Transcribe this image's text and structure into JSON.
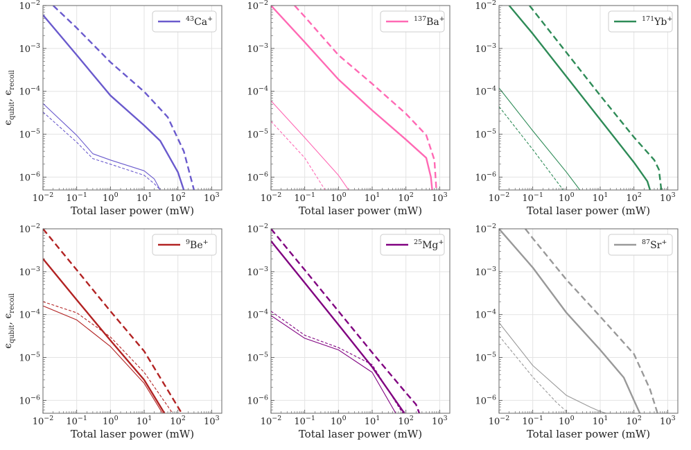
{
  "figure": {
    "ylabel": "ϵqubit, ϵrecoil",
    "xlabel": "Total laser power (mW)"
  },
  "chart_data": [
    {
      "type": "line",
      "xscale": "log",
      "yscale": "log",
      "xlim": [
        0.01,
        2000
      ],
      "ylim": [
        5e-07,
        0.01
      ],
      "x_tick_labels": [
        "10^-2",
        "10^-1",
        "10^0",
        "10^1",
        "10^2",
        "10^3"
      ],
      "y_tick_labels": [
        "10^-6",
        "10^-5",
        "10^-4",
        "10^-3",
        "10^-2"
      ],
      "xlabel": "Total laser power (mW)",
      "ylabel": "ϵqubit, ϵrecoil",
      "legend": {
        "label": "43Ca+",
        "mass": "43",
        "element": "Ca",
        "charge": "+"
      },
      "color": "#6a5acd",
      "series": [
        {
          "name": "qubit error (solid, thick)",
          "x": [
            0.01,
            0.1,
            1,
            10,
            30,
            100,
            150
          ],
          "y": [
            0.006,
            0.0007,
            8e-05,
            1.6e-05,
            7e-06,
            1.3e-06,
            5e-07
          ]
        },
        {
          "name": "qubit error (dashed, thick)",
          "x": [
            0.02,
            0.1,
            1,
            10,
            50,
            150,
            300
          ],
          "y": [
            0.01,
            0.003,
            0.00048,
            9.8e-05,
            2.5e-05,
            4e-06,
            5e-07
          ]
        },
        {
          "name": "recoil error (solid, thin)",
          "x": [
            0.01,
            0.1,
            0.3,
            1,
            10,
            20,
            30
          ],
          "y": [
            5.2e-05,
            9.4e-06,
            3.5e-06,
            2.5e-06,
            1.4e-06,
            9e-07,
            5e-07
          ]
        },
        {
          "name": "recoil error (dashed, thin)",
          "x": [
            0.01,
            0.1,
            0.3,
            1,
            10,
            20,
            30
          ],
          "y": [
            3.3e-05,
            6.5e-06,
            2.7e-06,
            2e-06,
            1.1e-06,
            7e-07,
            5e-07
          ]
        }
      ]
    },
    {
      "type": "line",
      "xscale": "log",
      "yscale": "log",
      "xlim": [
        0.01,
        2000
      ],
      "ylim": [
        5e-07,
        0.01
      ],
      "x_tick_labels": [
        "10^-2",
        "10^-1",
        "10^0",
        "10^1",
        "10^2",
        "10^3"
      ],
      "y_tick_labels": [
        "10^-6",
        "10^-5",
        "10^-4",
        "10^-3",
        "10^-2"
      ],
      "xlabel": "Total laser power (mW)",
      "ylabel": "",
      "legend": {
        "label": "137Ba+",
        "mass": "137",
        "element": "Ba",
        "charge": "+"
      },
      "color": "#ff69b4",
      "series": [
        {
          "name": "qubit error (solid, thick)",
          "x": [
            0.01,
            0.1,
            1,
            10,
            100,
            400,
            550,
            600
          ],
          "y": [
            0.01,
            0.0014,
            0.00019,
            3.6e-05,
            7.5e-06,
            2.8e-06,
            1e-06,
            5e-07
          ]
        },
        {
          "name": "qubit error (dashed, thick)",
          "x": [
            0.05,
            0.1,
            1,
            10,
            100,
            400,
            700,
            800
          ],
          "y": [
            0.01,
            0.0055,
            0.0007,
            0.00015,
            3e-05,
            9.5e-06,
            2.5e-06,
            5e-07
          ]
        },
        {
          "name": "recoil error (solid, thin)",
          "x": [
            0.01,
            0.1,
            1,
            2
          ],
          "y": [
            6e-05,
            8.3e-06,
            1.1e-06,
            5e-07
          ]
        },
        {
          "name": "recoil error (dashed, thin)",
          "x": [
            0.01,
            0.1,
            0.4
          ],
          "y": [
            2e-05,
            2.8e-06,
            5e-07
          ]
        }
      ]
    },
    {
      "type": "line",
      "xscale": "log",
      "yscale": "log",
      "xlim": [
        0.01,
        2000
      ],
      "ylim": [
        5e-07,
        0.01
      ],
      "x_tick_labels": [
        "10^-2",
        "10^-1",
        "10^0",
        "10^1",
        "10^2",
        "10^3"
      ],
      "y_tick_labels": [
        "10^-6",
        "10^-5",
        "10^-4",
        "10^-3",
        "10^-2"
      ],
      "xlabel": "Total laser power (mW)",
      "ylabel": "",
      "legend": {
        "label": "171Yb+",
        "mass": "171",
        "element": "Yb",
        "charge": "+"
      },
      "color": "#2e8b57",
      "series": [
        {
          "name": "qubit error (solid, thick)",
          "x": [
            0.02,
            0.1,
            1,
            10,
            100,
            250,
            300
          ],
          "y": [
            0.01,
            0.0022,
            0.00022,
            2.2e-05,
            2.2e-06,
            8e-07,
            5e-07
          ]
        },
        {
          "name": "qubit error (dashed, thick)",
          "x": [
            0.08,
            1,
            10,
            100,
            400,
            550,
            650
          ],
          "y": [
            0.01,
            0.0008,
            8e-05,
            8.5e-06,
            2.5e-06,
            1.5e-06,
            5e-07
          ]
        },
        {
          "name": "recoil error (solid, thin)",
          "x": [
            0.01,
            0.1,
            1,
            2.5
          ],
          "y": [
            0.00012,
            1.2e-05,
            1.3e-06,
            5e-07
          ]
        },
        {
          "name": "recoil error (dashed, thin)",
          "x": [
            0.01,
            0.1,
            0.8
          ],
          "y": [
            4.4e-05,
            4.4e-06,
            5e-07
          ]
        }
      ]
    },
    {
      "type": "line",
      "xscale": "log",
      "yscale": "log",
      "xlim": [
        0.01,
        2000
      ],
      "ylim": [
        5e-07,
        0.01
      ],
      "x_tick_labels": [
        "10^-2",
        "10^-1",
        "10^0",
        "10^1",
        "10^2",
        "10^3"
      ],
      "y_tick_labels": [
        "10^-6",
        "10^-5",
        "10^-4",
        "10^-3",
        "10^-2"
      ],
      "xlabel": "Total laser power (mW)",
      "ylabel": "ϵqubit, ϵrecoil",
      "legend": {
        "label": "9Be+",
        "mass": "9",
        "element": "Be",
        "charge": "+"
      },
      "color": "#b22222",
      "series": [
        {
          "name": "qubit error (solid, thick)",
          "x": [
            0.01,
            0.1,
            1,
            10,
            40
          ],
          "y": [
            0.002,
            0.00022,
            2.5e-05,
            3e-06,
            5e-07
          ]
        },
        {
          "name": "qubit error (dashed, thick)",
          "x": [
            0.01,
            0.1,
            1,
            10,
            130
          ],
          "y": [
            0.01,
            0.0011,
            0.00012,
            1.4e-05,
            5e-07
          ]
        },
        {
          "name": "recoil error (solid, thin)",
          "x": [
            0.01,
            0.1,
            1,
            10,
            35
          ],
          "y": [
            0.00016,
            7.5e-05,
            1.8e-05,
            2.5e-06,
            5e-07
          ]
        },
        {
          "name": "recoil error (dashed, thin)",
          "x": [
            0.01,
            0.1,
            1,
            10,
            70
          ],
          "y": [
            0.0002,
            0.00011,
            3e-05,
            4.5e-06,
            5e-07
          ]
        }
      ]
    },
    {
      "type": "line",
      "xscale": "log",
      "yscale": "log",
      "xlim": [
        0.01,
        2000
      ],
      "ylim": [
        5e-07,
        0.01
      ],
      "x_tick_labels": [
        "10^-2",
        "10^-1",
        "10^0",
        "10^1",
        "10^2",
        "10^3"
      ],
      "y_tick_labels": [
        "10^-6",
        "10^-5",
        "10^-4",
        "10^-3",
        "10^-2"
      ],
      "xlabel": "Total laser power (mW)",
      "ylabel": "",
      "legend": {
        "label": "25Mg+",
        "mass": "25",
        "element": "Mg",
        "charge": "+"
      },
      "color": "#800080",
      "series": [
        {
          "name": "qubit error (solid, thick)",
          "x": [
            0.01,
            0.1,
            1,
            10,
            90
          ],
          "y": [
            0.0052,
            0.00055,
            5.8e-05,
            6e-06,
            5e-07
          ]
        },
        {
          "name": "qubit error (dashed, thick)",
          "x": [
            0.01,
            0.1,
            1,
            10,
            100,
            200,
            250
          ],
          "y": [
            0.01,
            0.0011,
            0.00012,
            1.3e-05,
            1.5e-06,
            8e-07,
            5e-07
          ]
        },
        {
          "name": "recoil error (solid, thin)",
          "x": [
            0.01,
            0.1,
            1,
            10,
            50
          ],
          "y": [
            9.5e-05,
            2.8e-05,
            1.5e-05,
            4.5e-06,
            5e-07
          ]
        },
        {
          "name": "recoil error (dashed, thin)",
          "x": [
            0.01,
            0.1,
            1,
            10,
            80
          ],
          "y": [
            0.00012,
            3.3e-05,
            1.7e-05,
            6.8e-06,
            5e-07
          ]
        }
      ]
    },
    {
      "type": "line",
      "xscale": "log",
      "yscale": "log",
      "xlim": [
        0.01,
        2000
      ],
      "ylim": [
        5e-07,
        0.01
      ],
      "x_tick_labels": [
        "10^-2",
        "10^-1",
        "10^0",
        "10^1",
        "10^2",
        "10^3"
      ],
      "y_tick_labels": [
        "10^-6",
        "10^-5",
        "10^-4",
        "10^-3",
        "10^-2"
      ],
      "xlabel": "Total laser power (mW)",
      "ylabel": "",
      "legend": {
        "label": "87Sr+",
        "mass": "87",
        "element": "Sr",
        "charge": "+"
      },
      "color": "#999999",
      "series": [
        {
          "name": "qubit error (solid, thick)",
          "x": [
            0.01,
            0.1,
            1,
            10,
            50,
            100,
            150
          ],
          "y": [
            0.01,
            0.00125,
            0.00011,
            1.5e-05,
            3.4e-06,
            1e-06,
            5e-07
          ]
        },
        {
          "name": "qubit error (dashed, thick)",
          "x": [
            0.06,
            0.1,
            1,
            10,
            100,
            300,
            500
          ],
          "y": [
            0.01,
            0.006,
            0.00065,
            9e-05,
            1.2e-05,
            1.8e-06,
            5e-07
          ]
        },
        {
          "name": "recoil error (solid, thin)",
          "x": [
            0.01,
            0.1,
            1,
            5,
            10,
            15
          ],
          "y": [
            6.5e-05,
            6.5e-06,
            1.3e-06,
            7e-07,
            5.5e-07,
            5e-07
          ]
        },
        {
          "name": "recoil error (dashed, thin)",
          "x": [
            0.01,
            0.1,
            0.5,
            1,
            1.2
          ],
          "y": [
            3.2e-05,
            3.5e-06,
            9e-07,
            5.5e-07,
            5e-07
          ]
        }
      ]
    }
  ]
}
